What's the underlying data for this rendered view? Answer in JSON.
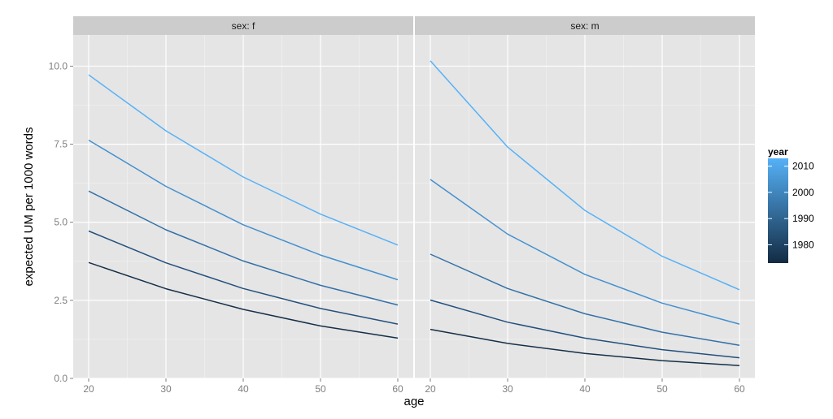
{
  "chart_data": {
    "type": "line",
    "xlabel": "age",
    "ylabel": "expected UM per 1000 words",
    "x": [
      20,
      30,
      40,
      50,
      60
    ],
    "xticks": [
      "20",
      "30",
      "40",
      "50",
      "60"
    ],
    "yticks": [
      "0.0",
      "2.5",
      "5.0",
      "7.5",
      "10.0"
    ],
    "xlim": [
      18,
      62
    ],
    "ylim": [
      0,
      11
    ],
    "grid": true,
    "legend": {
      "title": "year",
      "placement": "right",
      "labels": [
        "2010",
        "2000",
        "1990",
        "1980"
      ],
      "label_values": [
        2010,
        2000,
        1990,
        1980
      ],
      "range": [
        1973,
        2013
      ],
      "color_low": "#132b43",
      "color_high": "#56b1f7"
    },
    "panels": [
      {
        "strip": "sex: f",
        "series": [
          {
            "year": 2012,
            "color": "#56b1f7",
            "values": [
              9.72,
              7.93,
              6.45,
              5.26,
              4.27
            ]
          },
          {
            "year": 2002,
            "color": "#4390d0",
            "values": [
              7.63,
              6.15,
              4.92,
              3.95,
              3.16
            ]
          },
          {
            "year": 1992,
            "color": "#3370a8",
            "values": [
              6.0,
              4.76,
              3.76,
              2.98,
              2.35
            ]
          },
          {
            "year": 1982,
            "color": "#234f7d",
            "values": [
              4.72,
              3.7,
              2.88,
              2.24,
              1.74
            ]
          },
          {
            "year": 1974,
            "color": "#152f48",
            "values": [
              3.71,
              2.87,
              2.21,
              1.68,
              1.29
            ]
          }
        ]
      },
      {
        "strip": "sex: m",
        "series": [
          {
            "year": 2012,
            "color": "#56b1f7",
            "values": [
              10.17,
              7.41,
              5.38,
              3.91,
              2.84
            ]
          },
          {
            "year": 2002,
            "color": "#4390d0",
            "values": [
              6.37,
              4.62,
              3.33,
              2.41,
              1.74
            ]
          },
          {
            "year": 1992,
            "color": "#3370a8",
            "values": [
              3.98,
              2.88,
              2.07,
              1.48,
              1.06
            ]
          },
          {
            "year": 1982,
            "color": "#234f7d",
            "values": [
              2.51,
              1.8,
              1.29,
              0.92,
              0.66
            ]
          },
          {
            "year": 1974,
            "color": "#152f48",
            "values": [
              1.57,
              1.12,
              0.8,
              0.57,
              0.41
            ]
          }
        ]
      }
    ]
  }
}
